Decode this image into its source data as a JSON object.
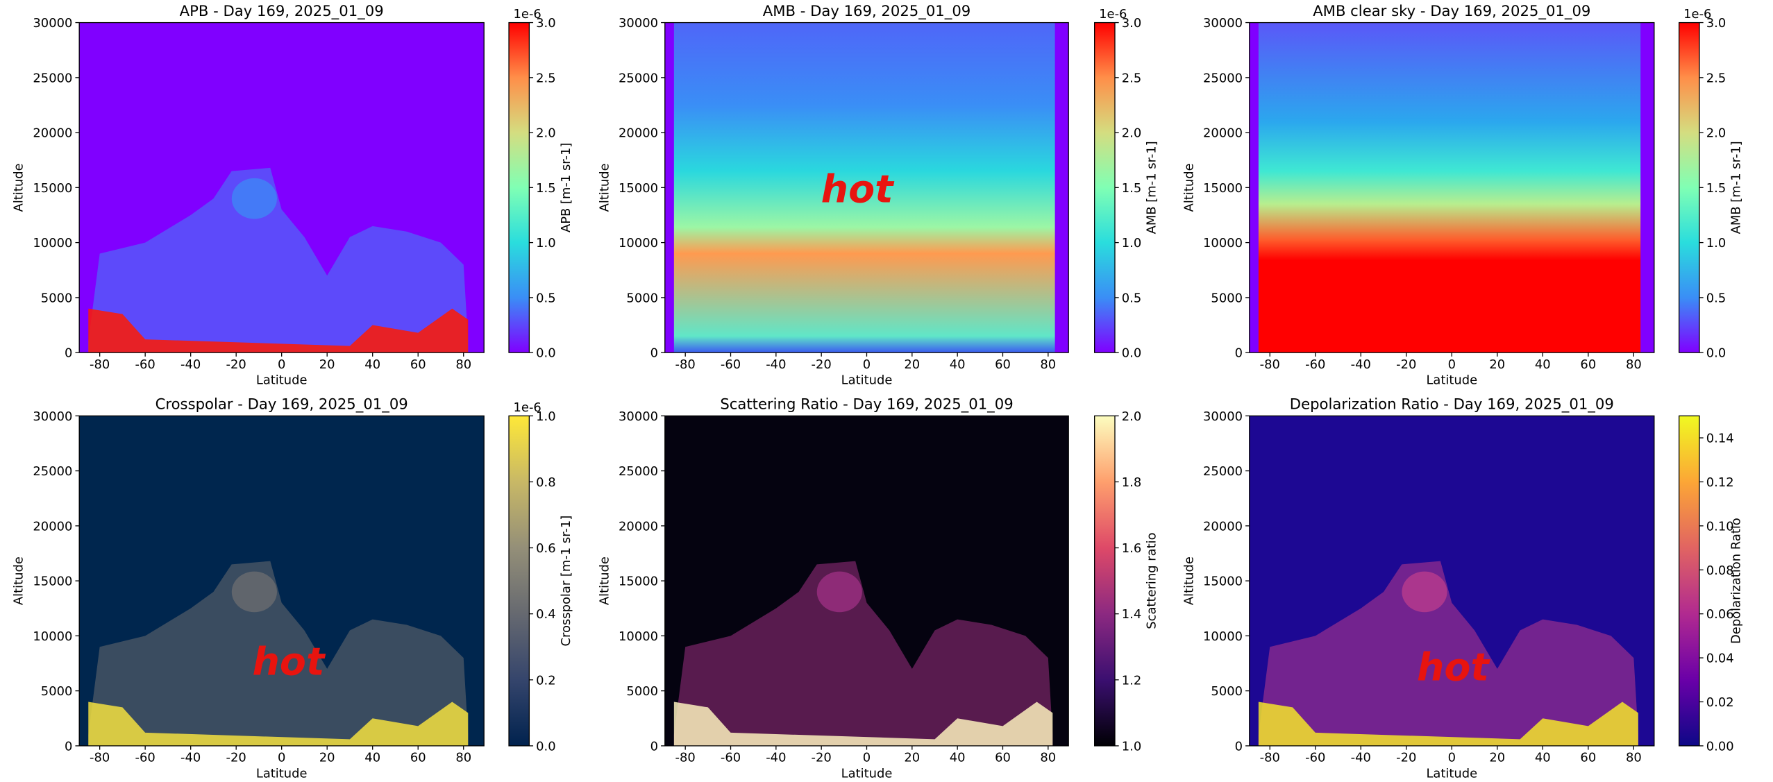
{
  "chart_data": [
    {
      "type": "heatmap",
      "title": "APB - Day 169, 2025_01_09",
      "x_label": "Latitude",
      "y_label": "Altitude",
      "colorbar_label": "APB [m-1 sr-1]",
      "offset_text": "1e-6",
      "colormap": "rainbow",
      "xlim": [
        -89,
        89
      ],
      "xticks": [
        -80,
        -60,
        -40,
        -20,
        0,
        20,
        40,
        60,
        80
      ],
      "ylim": [
        0,
        30000
      ],
      "yticks": [
        0,
        5000,
        10000,
        15000,
        20000,
        25000,
        30000
      ],
      "clim": [
        0,
        3e-06
      ],
      "cticks": [
        {
          "value": 0,
          "label": "0.0"
        },
        {
          "value": 5e-07,
          "label": "0.5"
        },
        {
          "value": 1e-06,
          "label": "1.0"
        },
        {
          "value": 1.5e-06,
          "label": "1.5"
        },
        {
          "value": 2e-06,
          "label": "2.0"
        },
        {
          "value": 2.5e-06,
          "label": "2.5"
        },
        {
          "value": 3e-06,
          "label": "3.0"
        }
      ]
    },
    {
      "type": "heatmap",
      "title": "AMB - Day 169, 2025_01_09",
      "x_label": "Latitude",
      "y_label": "Altitude",
      "colorbar_label": "AMB [m-1 sr-1]",
      "offset_text": "1e-6",
      "colormap": "rainbow",
      "annotation": "hot",
      "xlim": [
        -89,
        89
      ],
      "xticks": [
        -80,
        -60,
        -40,
        -20,
        0,
        20,
        40,
        60,
        80
      ],
      "ylim": [
        0,
        30000
      ],
      "yticks": [
        0,
        5000,
        10000,
        15000,
        20000,
        25000,
        30000
      ],
      "clim": [
        0,
        3e-06
      ],
      "cticks": [
        {
          "value": 0,
          "label": "0.0"
        },
        {
          "value": 5e-07,
          "label": "0.5"
        },
        {
          "value": 1e-06,
          "label": "1.0"
        },
        {
          "value": 1.5e-06,
          "label": "1.5"
        },
        {
          "value": 2e-06,
          "label": "2.0"
        },
        {
          "value": 2.5e-06,
          "label": "2.5"
        },
        {
          "value": 3e-06,
          "label": "3.0"
        }
      ]
    },
    {
      "type": "heatmap",
      "title": "AMB clear sky - Day 169, 2025_01_09",
      "x_label": "Latitude",
      "y_label": "Altitude",
      "colorbar_label": "AMB [m-1 sr-1]",
      "offset_text": "1e-6",
      "colormap": "rainbow",
      "xlim": [
        -89,
        89
      ],
      "xticks": [
        -80,
        -60,
        -40,
        -20,
        0,
        20,
        40,
        60,
        80
      ],
      "ylim": [
        0,
        30000
      ],
      "yticks": [
        0,
        5000,
        10000,
        15000,
        20000,
        25000,
        30000
      ],
      "clim": [
        0,
        3e-06
      ],
      "cticks": [
        {
          "value": 0,
          "label": "0.0"
        },
        {
          "value": 5e-07,
          "label": "0.5"
        },
        {
          "value": 1e-06,
          "label": "1.0"
        },
        {
          "value": 1.5e-06,
          "label": "1.5"
        },
        {
          "value": 2e-06,
          "label": "2.0"
        },
        {
          "value": 2.5e-06,
          "label": "2.5"
        },
        {
          "value": 3e-06,
          "label": "3.0"
        }
      ]
    },
    {
      "type": "heatmap",
      "title": "Crosspolar - Day 169, 2025_01_09",
      "x_label": "Latitude",
      "y_label": "Altitude",
      "colorbar_label": "Crosspolar [m-1 sr-1]",
      "offset_text": "1e-6",
      "colormap": "cividis",
      "annotation": "hot",
      "xlim": [
        -89,
        89
      ],
      "xticks": [
        -80,
        -60,
        -40,
        -20,
        0,
        20,
        40,
        60,
        80
      ],
      "ylim": [
        0,
        30000
      ],
      "yticks": [
        0,
        5000,
        10000,
        15000,
        20000,
        25000,
        30000
      ],
      "clim": [
        0,
        1e-06
      ],
      "cticks": [
        {
          "value": 0,
          "label": "0.0"
        },
        {
          "value": 2e-07,
          "label": "0.2"
        },
        {
          "value": 4e-07,
          "label": "0.4"
        },
        {
          "value": 6e-07,
          "label": "0.6"
        },
        {
          "value": 8e-07,
          "label": "0.8"
        },
        {
          "value": 1e-06,
          "label": "1.0"
        }
      ]
    },
    {
      "type": "heatmap",
      "title": "Scattering Ratio - Day 169, 2025_01_09",
      "x_label": "Latitude",
      "y_label": "Altitude",
      "colorbar_label": "Scattering ratio",
      "colormap": "magma",
      "xlim": [
        -89,
        89
      ],
      "xticks": [
        -80,
        -60,
        -40,
        -20,
        0,
        20,
        40,
        60,
        80
      ],
      "ylim": [
        0,
        30000
      ],
      "yticks": [
        0,
        5000,
        10000,
        15000,
        20000,
        25000,
        30000
      ],
      "clim": [
        1,
        2
      ],
      "cticks": [
        {
          "value": 1,
          "label": "1.0"
        },
        1.2,
        1.4,
        1.6,
        1.8,
        {
          "value": 2,
          "label": "2.0"
        }
      ]
    },
    {
      "type": "heatmap",
      "title": "Depolarization Ratio - Day 169, 2025_01_09",
      "x_label": "Latitude",
      "y_label": "Altitude",
      "colorbar_label": "Depolarization Ratio",
      "colormap": "plasma",
      "annotation": "hot",
      "xlim": [
        -89,
        89
      ],
      "xticks": [
        -80,
        -60,
        -40,
        -20,
        0,
        20,
        40,
        60,
        80
      ],
      "ylim": [
        0,
        30000
      ],
      "yticks": [
        0,
        5000,
        10000,
        15000,
        20000,
        25000,
        30000
      ],
      "clim": [
        0,
        0.15
      ],
      "cticks": [
        {
          "value": 0,
          "label": "0.00"
        },
        {
          "value": 0.02,
          "label": "0.02"
        },
        {
          "value": 0.04,
          "label": "0.04"
        },
        {
          "value": 0.06,
          "label": "0.06"
        },
        {
          "value": 0.08,
          "label": "0.08"
        },
        {
          "value": 0.1,
          "label": "0.10"
        },
        {
          "value": 0.12,
          "label": "0.12"
        },
        {
          "value": 0.14,
          "label": "0.14"
        }
      ]
    }
  ]
}
